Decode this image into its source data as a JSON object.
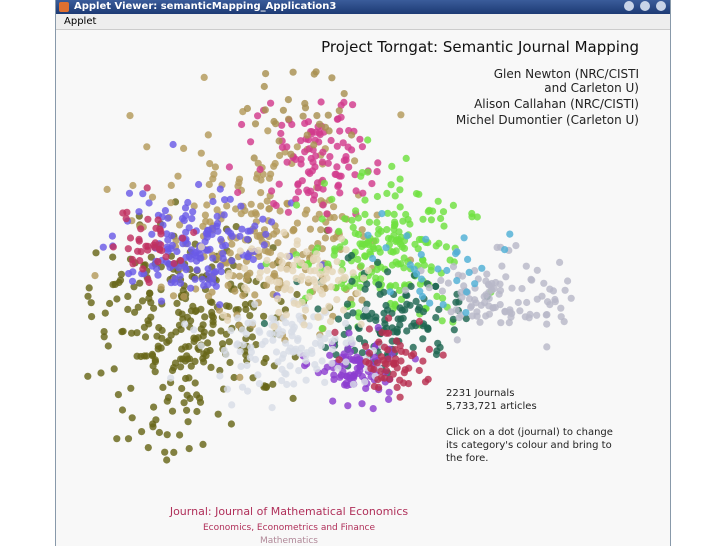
{
  "window": {
    "title": "Applet Viewer: semanticMapping_Application3",
    "menu": "Applet"
  },
  "header": {
    "title": "Project Torngat: Semantic Journal Mapping",
    "authors": [
      "Glen Newton (NRC/CISTI",
      "and Carleton U)",
      "Alison Callahan (NRC/CISTI)",
      "Michel Dumontier (Carleton U)"
    ]
  },
  "stats": {
    "journals": "2231 Journals",
    "articles": "5,733,721 articles",
    "instructions": [
      "Click on a dot (journal) to change",
      "its category's colour and bring to",
      "the fore."
    ]
  },
  "selection": {
    "journal": "Journal: Journal of Mathematical Economics",
    "categories": [
      "Economics, Econometrics and Finance",
      "Mathematics"
    ]
  }
}
